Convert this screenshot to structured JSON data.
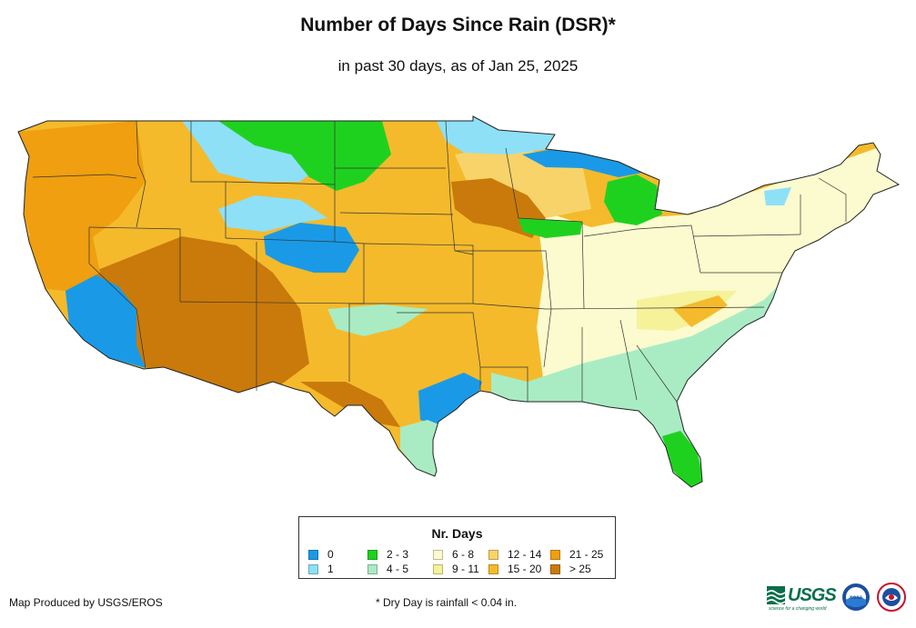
{
  "header": {
    "title": "Number of Days Since Rain (DSR)*",
    "subtitle": "in past 30 days, as of Jan 25, 2025"
  },
  "legend": {
    "title": "Nr. Days",
    "items": [
      {
        "label": "0",
        "color": "#1a9ae6"
      },
      {
        "label": "1",
        "color": "#8ee0f7"
      },
      {
        "label": "2 - 3",
        "color": "#1fd11f"
      },
      {
        "label": "4 - 5",
        "color": "#a9ecc3"
      },
      {
        "label": "6 - 8",
        "color": "#fbfbcf"
      },
      {
        "label": "9 - 11",
        "color": "#f6f29a"
      },
      {
        "label": "12 - 14",
        "color": "#f7d36a"
      },
      {
        "label": "15 - 20",
        "color": "#f4ba2c"
      },
      {
        "label": "21 - 25",
        "color": "#ef9f0f"
      },
      {
        "label": "> 25",
        "color": "#c97a0b"
      }
    ]
  },
  "footer": {
    "credit": "Map Produced by USGS/EROS",
    "footnote": "* Dry Day is rainfall < 0.04 in."
  },
  "logos": {
    "usgs_text": "USGS",
    "usgs_tagline": "science for a changing world",
    "noaa_text": "noaa",
    "nws_text": "NATIONAL WEATHER SERVICE"
  },
  "map_regions": [
    {
      "region": "pacific-northwest",
      "days": "21 - 25"
    },
    {
      "region": "california-coast",
      "days": "21 - 25"
    },
    {
      "region": "southern-california",
      "days": "0"
    },
    {
      "region": "southwest-desert",
      "days": "> 25"
    },
    {
      "region": "colorado-plateau",
      "days": "0"
    },
    {
      "region": "northern-plains",
      "days": "2 - 3"
    },
    {
      "region": "montana-wyoming",
      "days": "1"
    },
    {
      "region": "central-plains",
      "days": "15 - 20"
    },
    {
      "region": "upper-midwest",
      "days": "> 25"
    },
    {
      "region": "great-lakes",
      "days": "0"
    },
    {
      "region": "lower-michigan",
      "days": "2 - 3"
    },
    {
      "region": "ohio-valley",
      "days": "6 - 8"
    },
    {
      "region": "northeast",
      "days": "6 - 8"
    },
    {
      "region": "southeast",
      "days": "4 - 5"
    },
    {
      "region": "florida",
      "days": "2 - 3"
    },
    {
      "region": "texas",
      "days": "15 - 20"
    },
    {
      "region": "east-texas",
      "days": "0"
    },
    {
      "region": "south-texas-coast",
      "days": "4 - 5"
    }
  ]
}
